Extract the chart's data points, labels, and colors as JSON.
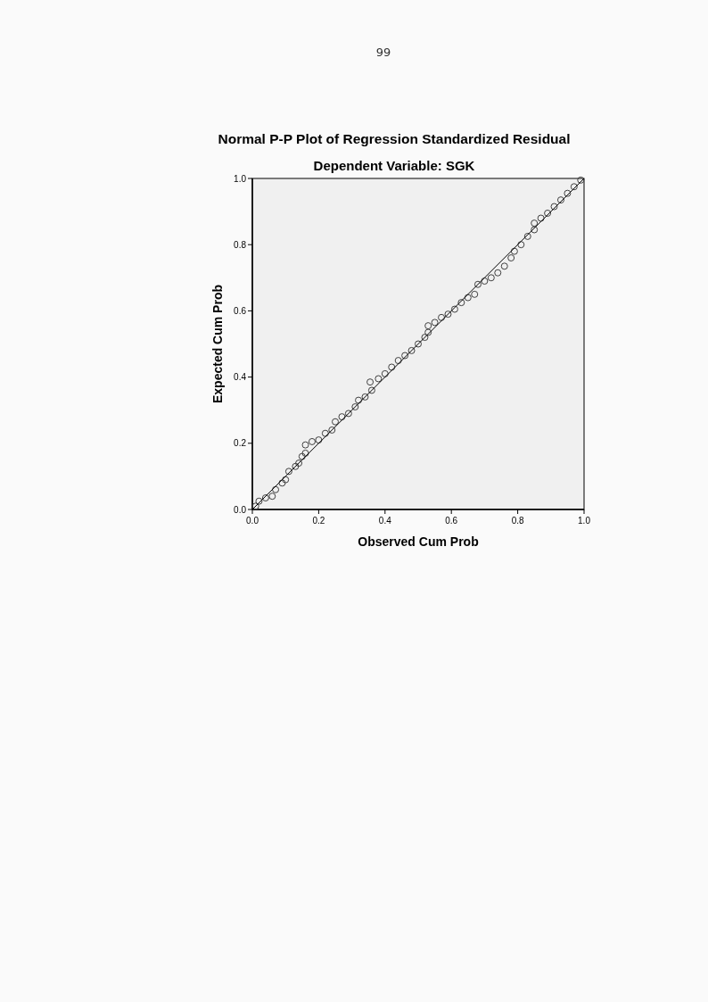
{
  "chart_data": {
    "type": "scatter",
    "title": "Normal P-P Plot of Regression Standardized Residual",
    "subtitle": "Dependent Variable: SGK",
    "xlabel": "Observed Cum Prob",
    "ylabel": "Expected Cum Prob",
    "annotations": [
      "99"
    ],
    "xlim": [
      0,
      1
    ],
    "ylim": [
      0,
      1
    ],
    "xticks": [
      {
        "value": 0,
        "label": "0.0"
      },
      0.2,
      0.4,
      0.6,
      0.8,
      {
        "value": 1,
        "label": "1.0"
      }
    ],
    "yticks": [
      {
        "value": 0,
        "label": "0.0"
      },
      0.2,
      0.4,
      0.6,
      0.8,
      {
        "value": 1,
        "label": "1.0"
      }
    ],
    "grid": false,
    "series": [
      {
        "color": "#404040",
        "marker": "circle",
        "x": [
          0.01,
          0.02,
          0.04,
          0.06,
          0.07,
          0.09,
          0.1,
          0.11,
          0.13,
          0.14,
          0.15,
          0.16,
          0.16,
          0.18,
          0.2,
          0.22,
          0.24,
          0.25,
          0.27,
          0.29,
          0.31,
          0.32,
          0.34,
          0.36,
          0.355,
          0.38,
          0.4,
          0.42,
          0.44,
          0.46,
          0.48,
          0.5,
          0.52,
          0.53,
          0.53,
          0.55,
          0.57,
          0.59,
          0.61,
          0.63,
          0.65,
          0.67,
          0.68,
          0.7,
          0.72,
          0.74,
          0.76,
          0.78,
          0.79,
          0.81,
          0.83,
          0.85,
          0.85,
          0.87,
          0.89,
          0.91,
          0.93,
          0.95,
          0.97,
          0.99
        ],
        "values": [
          0.01,
          0.025,
          0.035,
          0.04,
          0.06,
          0.08,
          0.09,
          0.115,
          0.13,
          0.14,
          0.16,
          0.17,
          0.195,
          0.205,
          0.21,
          0.23,
          0.24,
          0.265,
          0.28,
          0.29,
          0.31,
          0.33,
          0.34,
          0.36,
          0.385,
          0.395,
          0.41,
          0.43,
          0.45,
          0.465,
          0.48,
          0.5,
          0.52,
          0.535,
          0.555,
          0.565,
          0.58,
          0.59,
          0.605,
          0.625,
          0.64,
          0.65,
          0.68,
          0.69,
          0.7,
          0.715,
          0.735,
          0.76,
          0.78,
          0.8,
          0.825,
          0.845,
          0.865,
          0.88,
          0.895,
          0.915,
          0.935,
          0.955,
          0.975,
          0.995
        ]
      },
      {
        "type": "line",
        "color": "#000000",
        "line_style": "solid",
        "marker": "none",
        "x": [
          0,
          1
        ],
        "values": [
          0,
          1
        ]
      }
    ]
  }
}
